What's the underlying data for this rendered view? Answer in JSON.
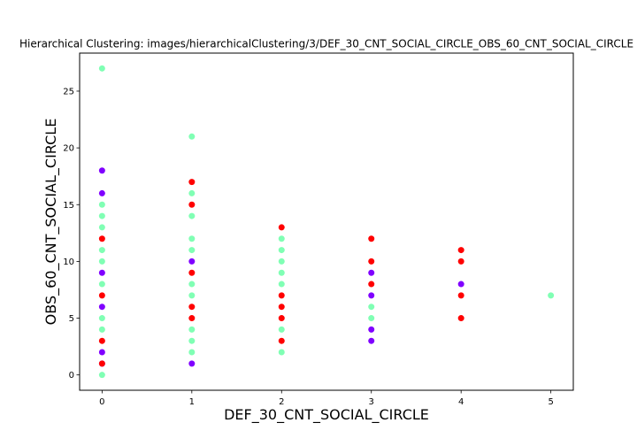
{
  "chart_data": {
    "type": "scatter",
    "title": "Hierarchical Clustering: images/hierarchicalClustering/3/DEF_30_CNT_SOCIAL_CIRCLE_OBS_60_CNT_SOCIAL_CIRCLE",
    "xlabel": "DEF_30_CNT_SOCIAL_CIRCLE",
    "ylabel": "OBS_60_CNT_SOCIAL_CIRCLE",
    "xlim": [
      -0.25,
      5.25
    ],
    "ylim": [
      -1.35,
      28.35
    ],
    "x_ticks": [
      0,
      1,
      2,
      3,
      4,
      5
    ],
    "y_ticks": [
      0,
      5,
      10,
      15,
      20,
      25
    ],
    "grid": false,
    "legend": "none",
    "colors": {
      "cluster_0": "#8000ff",
      "cluster_1": "#80ffb4",
      "cluster_2": "#ff0000"
    },
    "series": [
      {
        "cluster": "cluster_0",
        "points": [
          [
            0,
            18
          ],
          [
            0,
            16
          ],
          [
            0,
            9
          ],
          [
            0,
            6
          ],
          [
            0,
            2
          ],
          [
            0,
            1
          ],
          [
            1,
            10
          ],
          [
            1,
            1
          ],
          [
            3,
            9
          ],
          [
            3,
            7
          ],
          [
            3,
            4
          ],
          [
            3,
            3
          ],
          [
            4,
            8
          ]
        ]
      },
      {
        "cluster": "cluster_1",
        "points": [
          [
            0,
            27
          ],
          [
            0,
            15
          ],
          [
            0,
            14
          ],
          [
            0,
            13
          ],
          [
            0,
            11
          ],
          [
            0,
            10
          ],
          [
            0,
            8
          ],
          [
            0,
            5
          ],
          [
            0,
            4
          ],
          [
            0,
            0
          ],
          [
            1,
            21
          ],
          [
            1,
            16
          ],
          [
            1,
            14
          ],
          [
            1,
            12
          ],
          [
            1,
            11
          ],
          [
            1,
            8
          ],
          [
            1,
            7
          ],
          [
            1,
            4
          ],
          [
            1,
            3
          ],
          [
            1,
            2
          ],
          [
            2,
            12
          ],
          [
            2,
            11
          ],
          [
            2,
            10
          ],
          [
            2,
            9
          ],
          [
            2,
            8
          ],
          [
            2,
            4
          ],
          [
            2,
            2
          ],
          [
            3,
            6
          ],
          [
            3,
            5
          ],
          [
            5,
            7
          ]
        ]
      },
      {
        "cluster": "cluster_2",
        "points": [
          [
            0,
            12
          ],
          [
            0,
            7
          ],
          [
            0,
            3
          ],
          [
            0,
            1
          ],
          [
            1,
            17
          ],
          [
            1,
            15
          ],
          [
            1,
            9
          ],
          [
            1,
            6
          ],
          [
            1,
            5
          ],
          [
            2,
            13
          ],
          [
            2,
            7
          ],
          [
            2,
            6
          ],
          [
            2,
            5
          ],
          [
            2,
            3
          ],
          [
            3,
            12
          ],
          [
            3,
            10
          ],
          [
            3,
            8
          ],
          [
            4,
            11
          ],
          [
            4,
            10
          ],
          [
            4,
            7
          ],
          [
            4,
            5
          ]
        ]
      }
    ]
  }
}
